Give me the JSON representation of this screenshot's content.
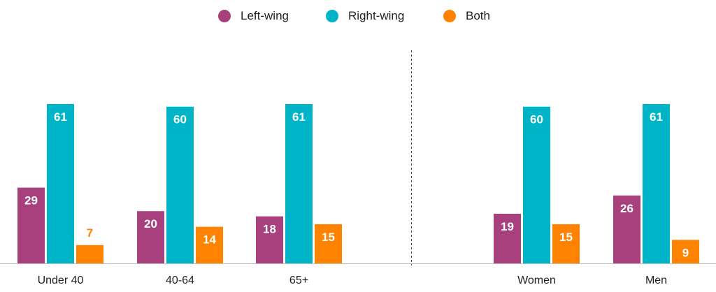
{
  "chart_data": {
    "type": "bar",
    "categories": [
      "Under 40",
      "40-64",
      "65+",
      "Women",
      "Men"
    ],
    "series": [
      {
        "name": "Left-wing",
        "color": "#a8407e",
        "values": [
          29,
          20,
          18,
          19,
          26
        ]
      },
      {
        "name": "Right-wing",
        "color": "#00b4c8",
        "values": [
          61,
          60,
          61,
          60,
          61
        ]
      },
      {
        "name": "Both",
        "color": "#ff8200",
        "values": [
          7,
          14,
          15,
          15,
          9
        ]
      }
    ],
    "ylim": [
      0,
      61
    ],
    "legend_position": "top-center",
    "grid": false,
    "divider": "dashed vertical line between 65+ and Women"
  }
}
